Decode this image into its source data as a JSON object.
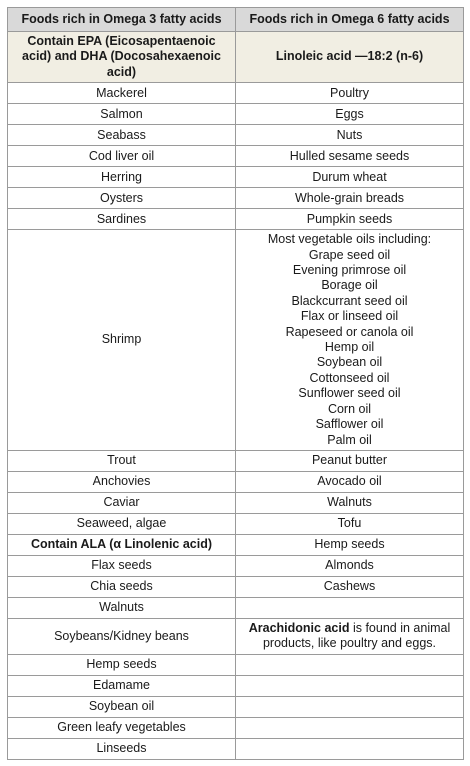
{
  "table": {
    "header": [
      "Foods rich in Omega 3 fatty acids",
      "Foods rich in Omega 6 fatty acids"
    ],
    "subheader": [
      "Contain EPA (Eicosapentaenoic acid) and DHA (Docosahexaenoic acid)",
      "Linoleic acid —18:2 (n-6)"
    ],
    "rows": [
      {
        "left": "Mackerel",
        "right": "Poultry"
      },
      {
        "left": "Salmon",
        "right": "Eggs"
      },
      {
        "left": "Seabass",
        "right": "Nuts"
      },
      {
        "left": "Cod liver oil",
        "right": "Hulled sesame seeds"
      },
      {
        "left": "Herring",
        "right": "Durum wheat"
      },
      {
        "left": "Oysters",
        "right": "Whole-grain breads"
      },
      {
        "left": "Sardines",
        "right": "Pumpkin seeds"
      },
      {
        "left": "Shrimp",
        "right_lines": [
          "Most vegetable oils including:",
          "Grape seed oil",
          "Evening primrose oil",
          "Borage oil",
          "Blackcurrant seed oil",
          "Flax or linseed oil",
          "Rapeseed or canola oil",
          "Hemp oil",
          "Soybean oil",
          "Cottonseed oil",
          "Sunflower seed oil",
          "Corn oil",
          "Safflower oil",
          "Palm oil"
        ]
      },
      {
        "left": "Trout",
        "right": "Peanut butter"
      },
      {
        "left": "Anchovies",
        "right": "Avocado oil"
      },
      {
        "left": "Caviar",
        "right": "Walnuts"
      },
      {
        "left": "Seaweed, algae",
        "right": "Tofu"
      },
      {
        "left_bold": "Contain ALA (α Linolenic acid)",
        "right": "Hemp seeds"
      },
      {
        "left": "Flax seeds",
        "right": "Almonds"
      },
      {
        "left": "Chia seeds",
        "right": "Cashews"
      },
      {
        "left": "Walnuts"
      },
      {
        "left": "Soybeans/Kidney beans",
        "right_bold": "Arachidonic acid",
        "right_text": " is found in animal products, like poultry and eggs."
      },
      {
        "left": "Hemp seeds"
      },
      {
        "left": "Edamame"
      },
      {
        "left": "Soybean oil"
      },
      {
        "left": "Green leafy vegetables"
      },
      {
        "left": "Linseeds"
      }
    ]
  }
}
